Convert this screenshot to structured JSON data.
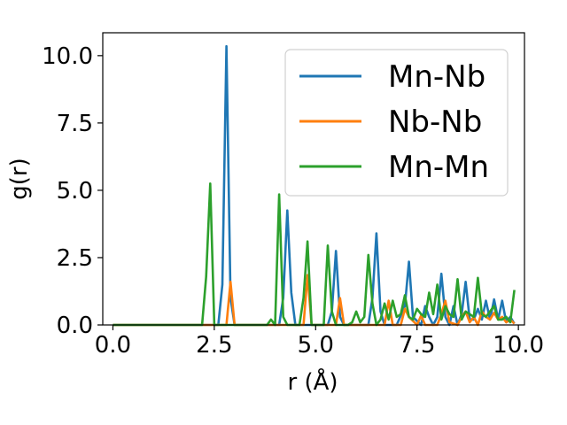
{
  "chart_data": {
    "type": "line",
    "title": "",
    "xlabel": "r (Å)",
    "ylabel": "g(r)",
    "xlim": [
      -0.25,
      10.15
    ],
    "ylim": [
      0,
      10.85
    ],
    "x_ticks": [
      "0.0",
      "2.5",
      "5.0",
      "7.5",
      "10.0"
    ],
    "y_ticks": [
      "0.0",
      "2.5",
      "5.0",
      "7.5",
      "10.0"
    ],
    "x_tick_values": [
      0,
      2.5,
      5,
      7.5,
      10
    ],
    "y_tick_values": [
      0,
      2.5,
      5,
      7.5,
      10
    ],
    "grid": false,
    "legend_position": "top-right",
    "series": [
      {
        "name": "Mn-Nb",
        "color": "#1f77b4",
        "x": [
          0,
          2.6,
          2.7,
          2.8,
          2.9,
          3.0,
          4.1,
          4.2,
          4.3,
          4.4,
          4.5,
          5.3,
          5.4,
          5.5,
          5.6,
          5.7,
          6.3,
          6.4,
          6.5,
          6.6,
          6.7,
          7.0,
          7.2,
          7.3,
          7.4,
          7.6,
          7.7,
          7.8,
          7.9,
          8.0,
          8.1,
          8.2,
          8.3,
          8.4,
          8.5,
          8.6,
          8.7,
          8.8,
          8.9,
          9.0,
          9.1,
          9.2,
          9.3,
          9.4,
          9.5,
          9.6,
          9.7,
          9.8,
          9.9
        ],
        "y": [
          0,
          0,
          1.5,
          10.35,
          1.0,
          0,
          0,
          1.0,
          4.25,
          1.2,
          0,
          0,
          0.5,
          2.75,
          0.3,
          0,
          0,
          1.0,
          3.4,
          0.5,
          0,
          0,
          0.7,
          2.35,
          0.3,
          0,
          0.7,
          0.3,
          0,
          0.3,
          1.9,
          0.3,
          0,
          0.7,
          0,
          0.4,
          1.6,
          0.2,
          0.2,
          0.6,
          0.2,
          0.9,
          0.2,
          0.95,
          0.2,
          0.9,
          0.1,
          0.3,
          0.05
        ]
      },
      {
        "name": "Nb-Nb",
        "color": "#ff7f0e",
        "x": [
          0,
          2.8,
          2.9,
          3.0,
          4.7,
          4.8,
          4.9,
          5.5,
          5.6,
          5.7,
          6.7,
          6.8,
          6.9,
          7.1,
          7.2,
          7.3,
          7.5,
          7.6,
          7.7,
          8.0,
          8.1,
          8.2,
          8.3,
          8.5,
          8.6,
          8.7,
          8.8,
          8.9,
          9.0,
          9.1,
          9.2,
          9.3,
          9.4,
          9.5,
          9.6,
          9.7,
          9.8,
          9.9
        ],
        "y": [
          0,
          0,
          1.6,
          0,
          0,
          1.85,
          0,
          0,
          1.0,
          0,
          0,
          0.9,
          0,
          0,
          0.6,
          0.3,
          0,
          0.35,
          0,
          0,
          0.4,
          0.9,
          0.1,
          0,
          0.3,
          0.5,
          0.1,
          0.3,
          0,
          0.5,
          0.3,
          0.2,
          0.45,
          0.2,
          0.3,
          0.1,
          0.2,
          0.05
        ]
      },
      {
        "name": "Mn-Mn",
        "color": "#2ca02c",
        "x": [
          0,
          2.2,
          2.3,
          2.4,
          2.5,
          3.8,
          3.9,
          4.0,
          4.1,
          4.2,
          4.3,
          4.6,
          4.7,
          4.8,
          4.9,
          5.2,
          5.3,
          5.4,
          5.5,
          5.8,
          5.9,
          6.0,
          6.1,
          6.2,
          6.3,
          6.4,
          6.5,
          6.6,
          6.7,
          6.8,
          6.9,
          7.0,
          7.1,
          7.2,
          7.3,
          7.4,
          7.5,
          7.6,
          7.7,
          7.8,
          7.9,
          8.0,
          8.1,
          8.2,
          8.3,
          8.4,
          8.5,
          8.6,
          8.7,
          8.8,
          8.9,
          9.0,
          9.1,
          9.2,
          9.3,
          9.4,
          9.5,
          9.6,
          9.7,
          9.8,
          9.9
        ],
        "y": [
          0,
          0,
          1.8,
          5.25,
          0,
          0,
          0.2,
          0,
          4.85,
          0.3,
          0,
          0,
          1.0,
          3.1,
          0,
          0,
          2.95,
          0.5,
          0,
          0,
          0.1,
          0.5,
          0.1,
          0.3,
          2.6,
          0.8,
          0,
          0.2,
          0.8,
          0.2,
          0.9,
          0.3,
          0.4,
          1.1,
          0.3,
          0.2,
          0.6,
          0.4,
          0.3,
          1.2,
          0.4,
          1.5,
          0.2,
          0.7,
          0.4,
          0.3,
          1.7,
          0.2,
          0.5,
          0.4,
          0.3,
          1.75,
          0.4,
          0.3,
          0.5,
          0.7,
          0.2,
          0.2,
          0.3,
          0.1,
          1.3
        ]
      }
    ]
  }
}
